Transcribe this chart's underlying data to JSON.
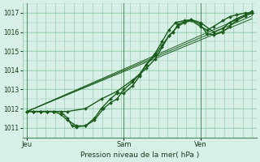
{
  "bg_color": "#d8efe8",
  "grid_color": "#88c8a0",
  "line_color": "#1a5c1a",
  "marker_color": "#1a5c1a",
  "xlabel": "Pression niveau de la mer( hPa )",
  "ylim": [
    1010.5,
    1017.5
  ],
  "yticks": [
    1011,
    1012,
    1013,
    1014,
    1015,
    1016,
    1017
  ],
  "xtick_labels": [
    "Jeu",
    "Sam",
    "Ven"
  ],
  "xtick_positions": [
    0.0,
    0.43,
    0.77
  ],
  "vline_positions": [
    0.0,
    0.43,
    0.77
  ],
  "n_xgrid": 24,
  "lines": [
    {
      "x": [
        0.0,
        0.03,
        0.06,
        0.09,
        0.12,
        0.15,
        0.18,
        0.2,
        0.22,
        0.26,
        0.3,
        0.33,
        0.37,
        0.4,
        0.43,
        0.47,
        0.5,
        0.53,
        0.57,
        0.6,
        0.63,
        0.67,
        0.7,
        0.73,
        0.77,
        0.8,
        0.83,
        0.87,
        0.9,
        0.93,
        0.97,
        1.0
      ],
      "y": [
        1011.85,
        1011.85,
        1011.85,
        1011.85,
        1011.85,
        1011.85,
        1011.5,
        1011.1,
        1011.05,
        1011.1,
        1011.5,
        1012.0,
        1012.5,
        1012.8,
        1012.8,
        1013.2,
        1013.7,
        1014.3,
        1014.8,
        1015.3,
        1015.8,
        1016.3,
        1016.5,
        1016.6,
        1016.3,
        1016.1,
        1016.3,
        1016.6,
        1016.8,
        1016.9,
        1017.0,
        1017.0
      ],
      "marker": "D",
      "markersize": 2.0,
      "lw": 1.0
    },
    {
      "x": [
        0.0,
        0.03,
        0.06,
        0.09,
        0.12,
        0.15,
        0.18,
        0.22,
        0.26,
        0.3,
        0.34,
        0.37,
        0.4,
        0.43,
        0.47,
        0.5,
        0.53,
        0.57,
        0.6,
        0.63,
        0.66,
        0.7,
        0.73,
        0.77,
        0.8,
        0.83,
        0.87,
        0.9,
        0.93,
        0.97,
        1.0
      ],
      "y": [
        1011.85,
        1011.85,
        1011.85,
        1011.85,
        1011.85,
        1011.7,
        1011.4,
        1011.1,
        1011.1,
        1011.4,
        1012.0,
        1012.3,
        1012.5,
        1013.0,
        1013.4,
        1013.8,
        1014.3,
        1014.9,
        1015.5,
        1016.1,
        1016.5,
        1016.6,
        1016.65,
        1016.4,
        1015.9,
        1015.85,
        1016.0,
        1016.3,
        1016.6,
        1016.85,
        1017.0
      ],
      "marker": "D",
      "markersize": 2.0,
      "lw": 1.0
    },
    {
      "x": [
        0.0,
        0.03,
        0.06,
        0.09,
        0.12,
        0.18,
        0.26,
        0.33,
        0.4,
        0.47,
        0.53,
        0.57,
        0.6,
        0.63,
        0.65,
        0.67,
        0.7,
        0.73,
        0.77,
        0.83,
        0.87,
        0.9,
        0.93,
        0.97,
        1.0
      ],
      "y": [
        1011.85,
        1011.85,
        1011.85,
        1011.85,
        1011.85,
        1011.85,
        1012.0,
        1012.5,
        1012.9,
        1013.5,
        1014.1,
        1014.6,
        1015.2,
        1015.8,
        1016.0,
        1016.4,
        1016.55,
        1016.65,
        1016.5,
        1016.0,
        1016.2,
        1016.5,
        1016.7,
        1016.9,
        1017.1
      ],
      "marker": "D",
      "markersize": 2.0,
      "lw": 1.0
    },
    {
      "x": [
        0.0,
        1.0
      ],
      "y": [
        1011.85,
        1017.0
      ],
      "marker": null,
      "markersize": 0,
      "lw": 0.7
    },
    {
      "x": [
        0.0,
        1.0
      ],
      "y": [
        1011.85,
        1016.85
      ],
      "marker": null,
      "markersize": 0,
      "lw": 0.7
    },
    {
      "x": [
        0.0,
        1.0
      ],
      "y": [
        1011.85,
        1016.7
      ],
      "marker": null,
      "markersize": 0,
      "lw": 0.7
    }
  ]
}
